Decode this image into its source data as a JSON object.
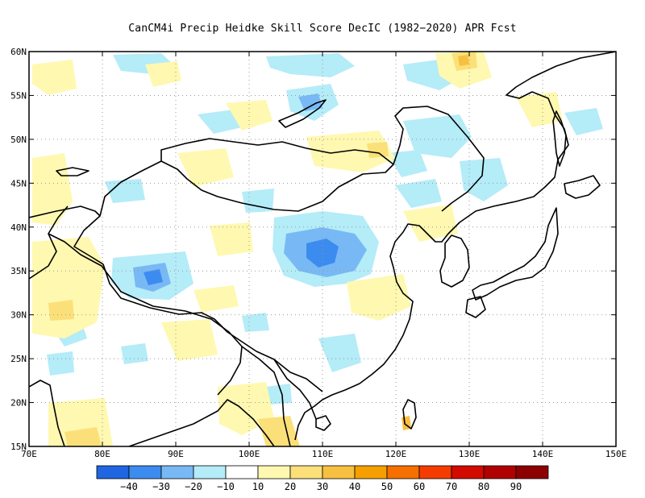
{
  "title": "CanCM4i Precip Heidke Skill Score DecIC (1982−2020) APR Fcst",
  "map": {
    "lon_range": [
      70,
      150
    ],
    "lat_range": [
      15,
      60
    ],
    "lon_ticks": [
      "70E",
      "80E",
      "90E",
      "100E",
      "110E",
      "120E",
      "130E",
      "140E",
      "150E"
    ],
    "lat_ticks": [
      "15N",
      "20N",
      "25N",
      "30N",
      "35N",
      "40N",
      "45N",
      "50N",
      "55N",
      "60N"
    ],
    "gridlines": true
  },
  "colorbar": {
    "labels": [
      "−40",
      "−30",
      "−20",
      "−10",
      "10",
      "20",
      "30",
      "40",
      "50",
      "60",
      "70",
      "80",
      "90"
    ],
    "colors": [
      "#1f66e0",
      "#3c8cf0",
      "#78b9f5",
      "#b4ecf8",
      "#ffffff",
      "#fff8b0",
      "#fbe07a",
      "#f8c040",
      "#f5a000",
      "#f57000",
      "#f53c00",
      "#d20a00",
      "#b00000",
      "#8c0000"
    ]
  },
  "shading_colors": {
    "light_blue": "#b4ecf8",
    "mid_blue": "#78b9f5",
    "blue": "#3c8cf0",
    "light_yellow": "#fff8b0",
    "yellow": "#fbe07a",
    "orange": "#f8c040"
  }
}
